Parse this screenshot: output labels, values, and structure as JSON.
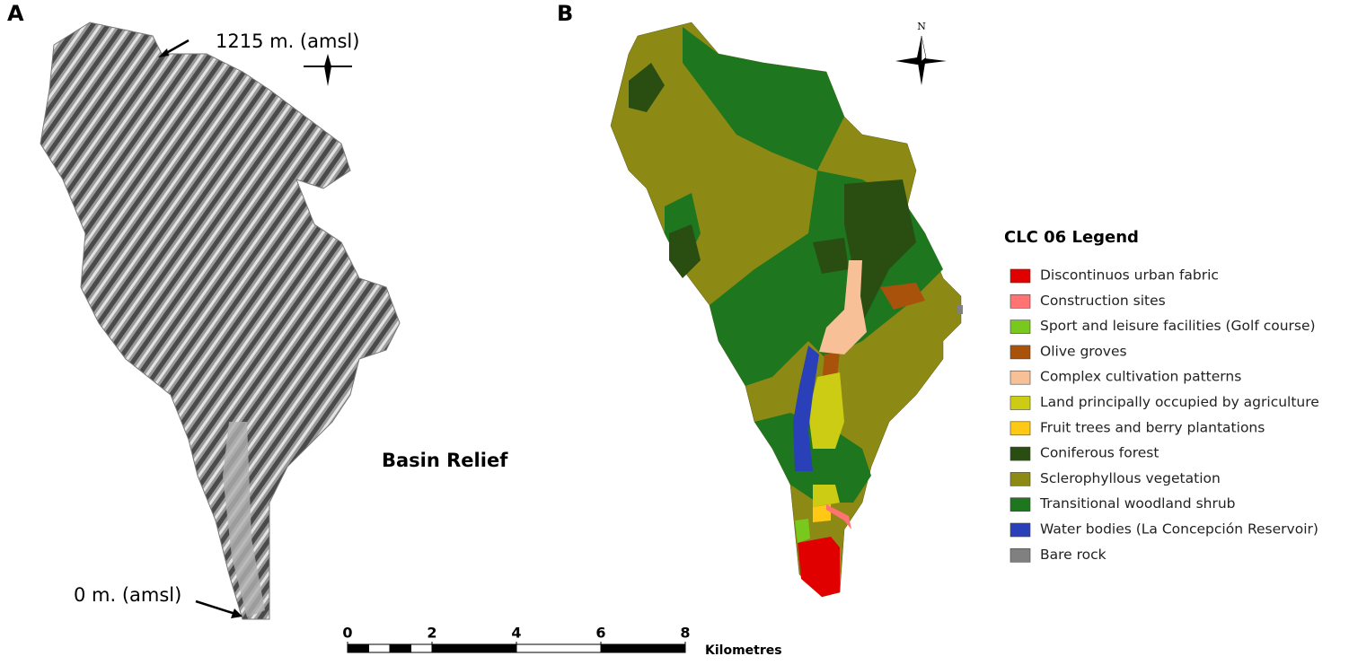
{
  "panels": {
    "a": {
      "label": "A",
      "top_annotation": "1215 m. (amsl)",
      "bottom_annotation": "0 m. (amsl)",
      "title": "Basin Relief"
    },
    "b": {
      "label": "B",
      "north": "N",
      "legend": {
        "title": "CLC 06 Legend",
        "items": [
          {
            "name": "Discontinuos urban fabric",
            "color": "#e00000"
          },
          {
            "name": "Construction sites",
            "color": "#ff7373"
          },
          {
            "name": "Sport and leisure facilities (Golf course)",
            "color": "#78c81e"
          },
          {
            "name": "Olive groves",
            "color": "#a8520c"
          },
          {
            "name": "Complex cultivation patterns",
            "color": "#f8c096"
          },
          {
            "name": "Land principally occupied by agriculture",
            "color": "#cccc14"
          },
          {
            "name": "Fruit trees and berry plantations",
            "color": "#ffc814"
          },
          {
            "name": "Coniferous forest",
            "color": "#2a4d12"
          },
          {
            "name": "Sclerophyllous vegetation",
            "color": "#8c8a14"
          },
          {
            "name": "Transitional woodland shrub",
            "color": "#1e761e"
          },
          {
            "name": "Water bodies (La Concepción Reservoir)",
            "color": "#2a40b8"
          },
          {
            "name": "Bare rock",
            "color": "#808080"
          }
        ]
      }
    }
  },
  "scale_bar": {
    "ticks": [
      0,
      2,
      4,
      6,
      8
    ],
    "unit": "Kilometres"
  }
}
